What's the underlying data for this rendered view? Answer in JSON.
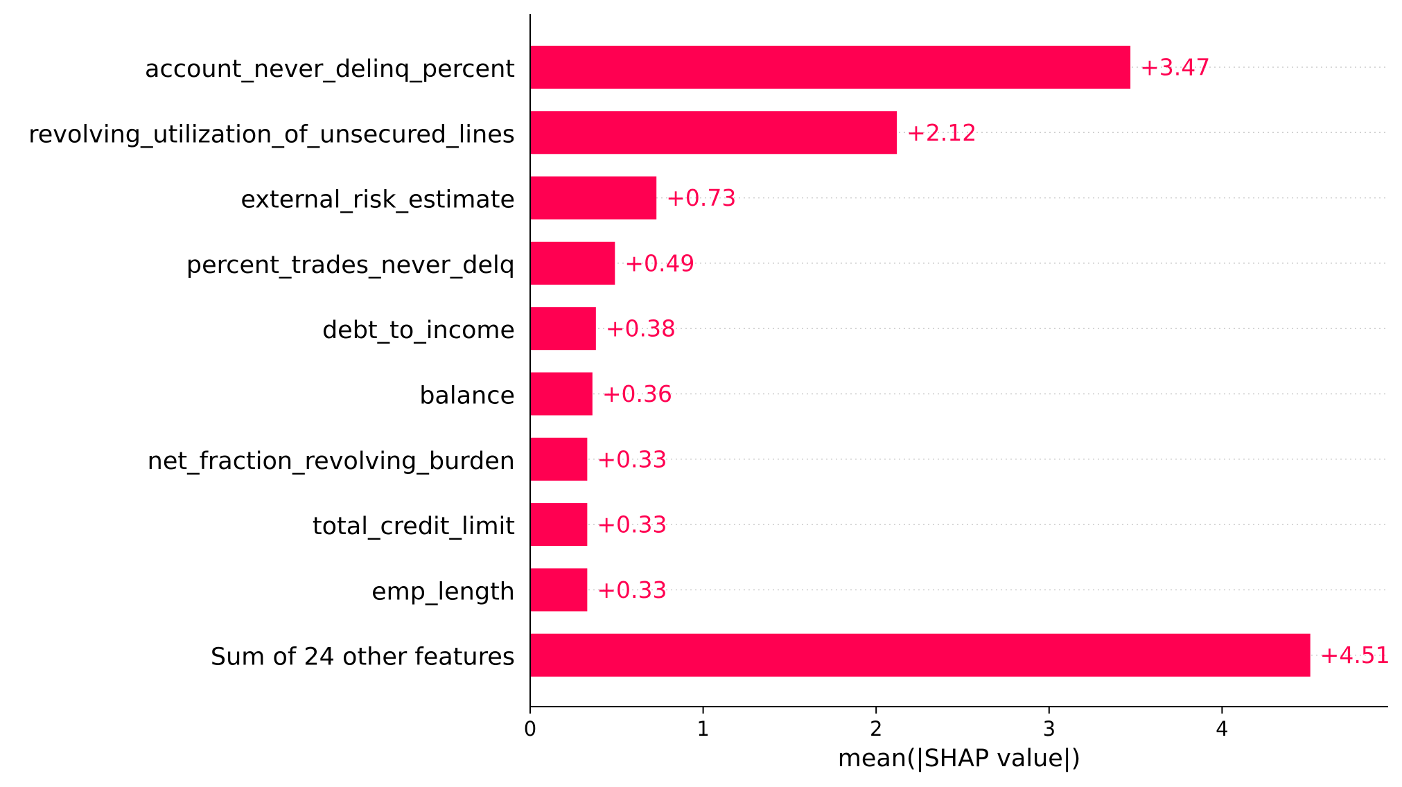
{
  "chart_data": {
    "type": "bar",
    "orientation": "horizontal",
    "categories": [
      "account_never_delinq_percent",
      "revolving_utilization_of_unsecured_lines",
      "external_risk_estimate",
      "percent_trades_never_delq",
      "debt_to_income",
      "balance",
      "net_fraction_revolving_burden",
      "total_credit_limit",
      "emp_length",
      "Sum of 24 other features"
    ],
    "values": [
      3.47,
      2.12,
      0.73,
      0.49,
      0.38,
      0.36,
      0.33,
      0.33,
      0.33,
      4.51
    ],
    "value_labels": [
      "+3.47",
      "+2.12",
      "+0.73",
      "+0.49",
      "+0.38",
      "+0.36",
      "+0.33",
      "+0.33",
      "+0.33",
      "+4.51"
    ],
    "xlabel": "mean(|SHAP value|)",
    "ylabel": "",
    "title": "",
    "xlim": [
      0,
      4.96
    ],
    "xticks": [
      0,
      1,
      2,
      3,
      4
    ],
    "xtick_labels": [
      "0",
      "1",
      "2",
      "3",
      "4"
    ],
    "grid": "dotted horizontal guide lines per row",
    "legend": "none",
    "colors": {
      "bar": "#ff0051",
      "value_label": "#ff0051",
      "guide": "#cccccc",
      "axis": "#000000"
    }
  }
}
